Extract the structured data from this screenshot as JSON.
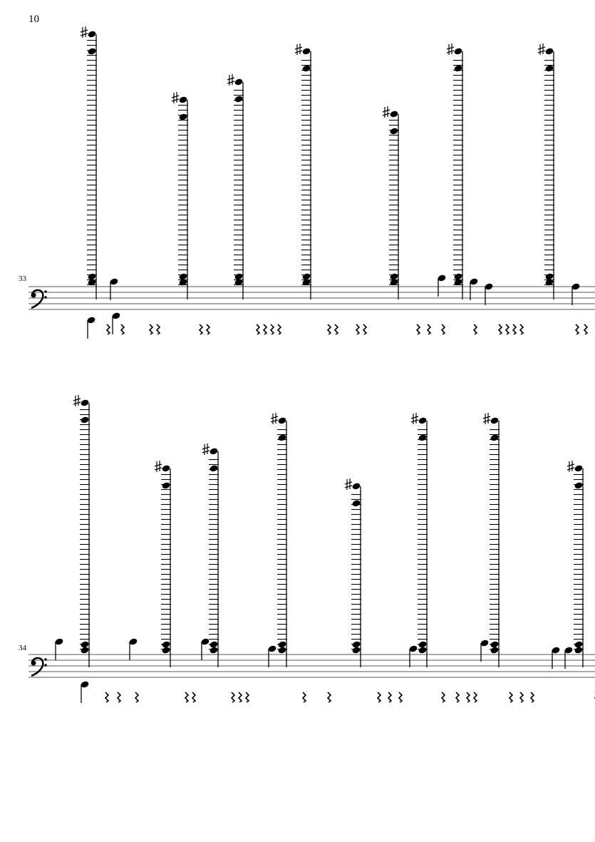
{
  "header": {
    "page_number": "10"
  },
  "systems": [
    {
      "measure_number": "33"
    },
    {
      "measure_number": "34"
    }
  ]
}
